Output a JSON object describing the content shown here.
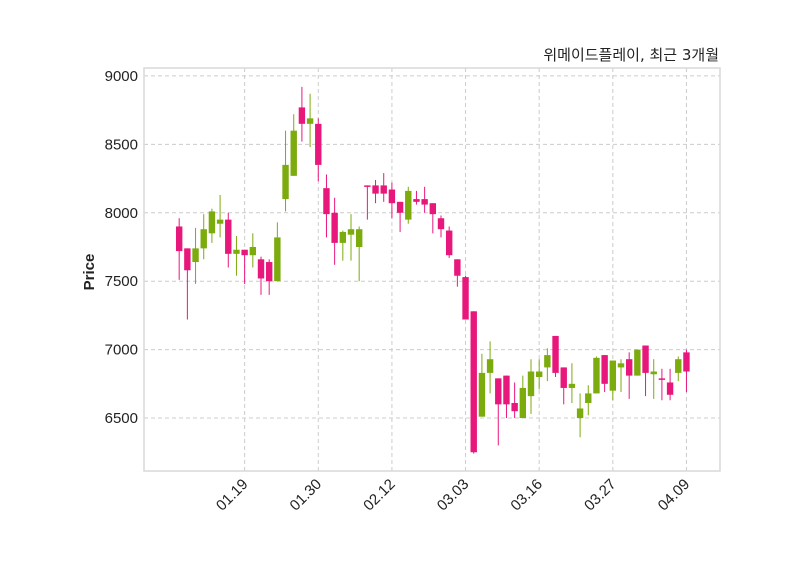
{
  "chart_data": {
    "type": "candlestick",
    "title": "위메이드플레이, 최근 3개월",
    "xlabel": "",
    "ylabel": "Price",
    "ylim": [
      6113,
      9058
    ],
    "xlim": [
      -4.3,
      66.1
    ],
    "yticks": [
      6500,
      7000,
      7500,
      8000,
      8500,
      9000
    ],
    "xticks": [
      {
        "index": 8,
        "label": "01.19"
      },
      {
        "index": 17,
        "label": "01.30"
      },
      {
        "index": 26,
        "label": "02.12"
      },
      {
        "index": 35,
        "label": "03.03"
      },
      {
        "index": 44,
        "label": "03.16"
      },
      {
        "index": 53,
        "label": "03.27"
      },
      {
        "index": 62,
        "label": "04.09"
      }
    ],
    "grid": true,
    "colors": {
      "up": "#7cab0e",
      "down": "#e8177c",
      "grid": "#cccccc",
      "frame": "#d9d9d9"
    },
    "ohlc_fields": [
      "open",
      "high",
      "low",
      "close"
    ],
    "ohlc": [
      [
        7900,
        7960,
        7510,
        7720
      ],
      [
        7740,
        7740,
        7220,
        7580
      ],
      [
        7640,
        7890,
        7480,
        7740
      ],
      [
        7740,
        7990,
        7660,
        7880
      ],
      [
        7850,
        8030,
        7780,
        8010
      ],
      [
        7920,
        8130,
        7820,
        7950
      ],
      [
        7950,
        8000,
        7600,
        7700
      ],
      [
        7700,
        7830,
        7540,
        7730
      ],
      [
        7730,
        7730,
        7480,
        7690
      ],
      [
        7690,
        7850,
        7600,
        7750
      ],
      [
        7660,
        7680,
        7400,
        7520
      ],
      [
        7640,
        7660,
        7400,
        7500
      ],
      [
        7500,
        7930,
        7500,
        7820
      ],
      [
        8100,
        8600,
        8010,
        8350
      ],
      [
        8270,
        8720,
        8270,
        8600
      ],
      [
        8770,
        8920,
        8520,
        8650
      ],
      [
        8650,
        8870,
        8480,
        8690
      ],
      [
        8650,
        8690,
        8230,
        8350
      ],
      [
        8180,
        8280,
        7820,
        7990
      ],
      [
        8000,
        8110,
        7620,
        7780
      ],
      [
        7780,
        7870,
        7650,
        7860
      ],
      [
        7840,
        7990,
        7650,
        7880
      ],
      [
        7750,
        7900,
        7500,
        7880
      ],
      [
        8200,
        8200,
        7950,
        8190
      ],
      [
        8200,
        8240,
        8070,
        8140
      ],
      [
        8200,
        8290,
        8080,
        8140
      ],
      [
        8170,
        8220,
        7960,
        8070
      ],
      [
        8080,
        8080,
        7860,
        8000
      ],
      [
        7950,
        8190,
        7920,
        8160
      ],
      [
        8100,
        8160,
        8060,
        8080
      ],
      [
        8100,
        8190,
        8000,
        8060
      ],
      [
        8070,
        8070,
        7850,
        7990
      ],
      [
        7960,
        7980,
        7820,
        7880
      ],
      [
        7870,
        7900,
        7670,
        7690
      ],
      [
        7660,
        7660,
        7460,
        7540
      ],
      [
        7530,
        7540,
        7220,
        7220
      ],
      [
        7280,
        7280,
        6240,
        6250
      ],
      [
        6510,
        6970,
        6510,
        6830
      ],
      [
        6830,
        7060,
        6680,
        6930
      ],
      [
        6790,
        6790,
        6300,
        6600
      ],
      [
        6810,
        6810,
        6500,
        6600
      ],
      [
        6610,
        6760,
        6500,
        6550
      ],
      [
        6500,
        6810,
        6500,
        6720
      ],
      [
        6660,
        6930,
        6530,
        6840
      ],
      [
        6800,
        6930,
        6710,
        6840
      ],
      [
        6870,
        7010,
        6770,
        6960
      ],
      [
        7100,
        7100,
        6800,
        6830
      ],
      [
        6870,
        6870,
        6600,
        6720
      ],
      [
        6720,
        6900,
        6610,
        6750
      ],
      [
        6500,
        6680,
        6360,
        6570
      ],
      [
        6610,
        6740,
        6520,
        6680
      ],
      [
        6680,
        6950,
        6680,
        6940
      ],
      [
        6960,
        6960,
        6690,
        6750
      ],
      [
        6700,
        6920,
        6630,
        6920
      ],
      [
        6870,
        6930,
        6690,
        6900
      ],
      [
        6930,
        6980,
        6640,
        6810
      ],
      [
        6810,
        7000,
        6810,
        7000
      ],
      [
        7030,
        7030,
        6660,
        6830
      ],
      [
        6820,
        6930,
        6640,
        6840
      ],
      [
        6790,
        6860,
        6630,
        6780
      ],
      [
        6760,
        6860,
        6630,
        6670
      ],
      [
        6830,
        6950,
        6770,
        6930
      ],
      [
        6980,
        7000,
        6690,
        6840
      ]
    ]
  }
}
